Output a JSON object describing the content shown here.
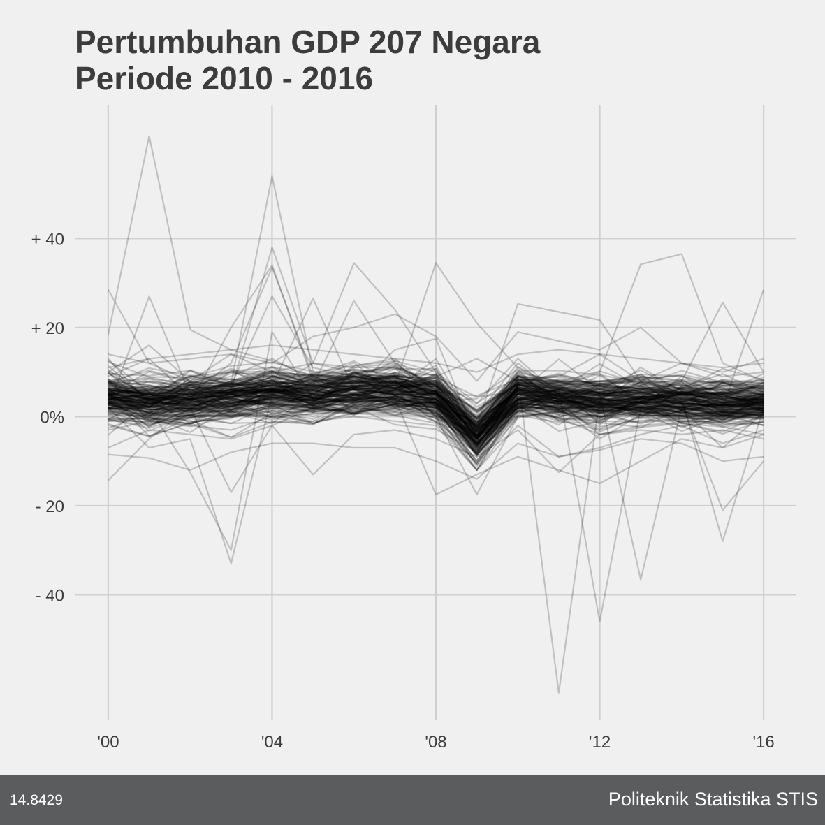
{
  "chart_data": {
    "type": "line",
    "title": [
      "Pertumbuhan GDP 207 Negara",
      "Periode 2010 - 2016"
    ],
    "x_tick_labels": [
      "'00",
      "'04",
      "'08",
      "'12",
      "'16"
    ],
    "x_ticks": [
      2000,
      2004,
      2008,
      2012,
      2016
    ],
    "y_tick_labels": [
      "+ 40",
      "+ 20",
      "0%",
      "- 20",
      "- 40"
    ],
    "y_ticks": [
      40,
      20,
      0,
      -20,
      -40
    ],
    "xlim": [
      1999.2,
      2016.8
    ],
    "ylim": [
      -68,
      70
    ],
    "grid": true,
    "line_color": "#000000",
    "line_opacity": 0.2,
    "series_count": 207,
    "typical_path": [
      [
        2000,
        4.2
      ],
      [
        2001,
        3.2
      ],
      [
        2002,
        3.6
      ],
      [
        2003,
        4.3
      ],
      [
        2004,
        5.3
      ],
      [
        2005,
        4.8
      ],
      [
        2006,
        5.4
      ],
      [
        2007,
        5.9
      ],
      [
        2008,
        4.3
      ],
      [
        2009,
        -4.6
      ],
      [
        2010,
        5.0
      ],
      [
        2011,
        4.1
      ],
      [
        2012,
        3.3
      ],
      [
        2013,
        3.6
      ],
      [
        2014,
        3.4
      ],
      [
        2015,
        2.9
      ],
      [
        2016,
        3.0
      ]
    ],
    "series": [
      {
        "x": [
          2000,
          2001,
          2002,
          2003,
          2004,
          2005,
          2006,
          2007,
          2008,
          2009,
          2010,
          2011,
          2012,
          2013,
          2014,
          2015,
          2016
        ],
        "values": [
          18.4,
          63.0,
          19.5,
          15.0,
          12.5,
          9.0,
          10.5,
          9.5,
          8.0,
          -3.0,
          6.0,
          5.5,
          4.0,
          4.5,
          4.0,
          3.5,
          3.5
        ]
      },
      {
        "x": [
          2000,
          2001,
          2002,
          2003,
          2004,
          2005,
          2006,
          2007,
          2008,
          2009,
          2010,
          2011,
          2012,
          2013,
          2014,
          2015,
          2016
        ],
        "values": [
          7.0,
          6.5,
          6.0,
          7.5,
          54.0,
          10.0,
          8.0,
          7.0,
          5.0,
          -6.0,
          4.0,
          3.5,
          3.0,
          3.5,
          3.0,
          2.5,
          2.5
        ]
      },
      {
        "x": [
          2000,
          2001,
          2002,
          2003,
          2004,
          2005,
          2006,
          2007,
          2008,
          2009,
          2010,
          2011,
          2012,
          2013,
          2014,
          2015,
          2016
        ],
        "values": [
          5.0,
          5.5,
          4.0,
          6.0,
          38.0,
          12.0,
          10.0,
          11.0,
          6.0,
          -4.0,
          7.0,
          6.5,
          7.0,
          5.0,
          4.5,
          2.0,
          3.0
        ]
      },
      {
        "x": [
          2000,
          2001,
          2002,
          2003,
          2004,
          2005,
          2006,
          2007,
          2008,
          2009,
          2010,
          2011,
          2012,
          2013,
          2014,
          2015,
          2016
        ],
        "values": [
          2.0,
          27.0,
          5.0,
          12.0,
          33.5,
          9.0,
          8.0,
          7.5,
          6.0,
          -5.0,
          5.0,
          3.0,
          1.0,
          3.0,
          2.0,
          1.5,
          2.0
        ]
      },
      {
        "x": [
          2000,
          2001,
          2002,
          2003,
          2004,
          2005,
          2006,
          2007,
          2008,
          2009,
          2010,
          2011,
          2012,
          2013,
          2014,
          2015,
          2016
        ],
        "values": [
          4.0,
          5.0,
          3.0,
          20.0,
          34.0,
          8.0,
          6.5,
          5.0,
          3.0,
          -8.0,
          4.0,
          3.0,
          2.5,
          3.0,
          3.5,
          2.0,
          2.0
        ]
      },
      {
        "x": [
          2000,
          2001,
          2002,
          2003,
          2004,
          2005,
          2006,
          2007,
          2008,
          2009,
          2010,
          2011,
          2012,
          2013,
          2014,
          2015,
          2016
        ],
        "values": [
          8.0,
          7.0,
          6.0,
          7.0,
          27.0,
          11.0,
          9.0,
          8.0,
          5.0,
          -3.0,
          6.0,
          5.0,
          4.0,
          4.0,
          4.5,
          3.0,
          3.5
        ]
      },
      {
        "x": [
          2000,
          2001,
          2002,
          2003,
          2004,
          2005,
          2006,
          2007,
          2008,
          2009,
          2010,
          2011,
          2012,
          2013,
          2014,
          2015,
          2016
        ],
        "values": [
          3.0,
          4.0,
          2.0,
          5.0,
          6.0,
          12.0,
          34.5,
          24.0,
          10.0,
          3.0,
          9.0,
          7.0,
          6.0,
          6.0,
          5.0,
          4.0,
          4.0
        ]
      },
      {
        "x": [
          2000,
          2001,
          2002,
          2003,
          2004,
          2005,
          2006,
          2007,
          2008,
          2009,
          2010,
          2011,
          2012,
          2013,
          2014,
          2015,
          2016
        ],
        "values": [
          6.0,
          5.0,
          4.0,
          5.0,
          7.0,
          26.5,
          6.0,
          15.0,
          17.5,
          -5.0,
          8.0,
          6.0,
          5.0,
          6.0,
          5.0,
          4.0,
          5.0
        ]
      },
      {
        "x": [
          2000,
          2001,
          2002,
          2003,
          2004,
          2005,
          2006,
          2007,
          2008,
          2009,
          2010,
          2011,
          2012,
          2013,
          2014,
          2015,
          2016
        ],
        "values": [
          5.0,
          4.0,
          5.0,
          6.0,
          5.0,
          7.0,
          26.0,
          12.0,
          6.0,
          -2.0,
          5.0,
          4.0,
          3.5,
          4.0,
          3.0,
          2.5,
          3.0
        ]
      },
      {
        "x": [
          2000,
          2001,
          2002,
          2003,
          2004,
          2005,
          2006,
          2007,
          2008,
          2009,
          2010,
          2011,
          2012,
          2013,
          2014,
          2015,
          2016
        ],
        "values": [
          4.0,
          3.0,
          4.0,
          5.0,
          6.0,
          6.0,
          7.0,
          7.0,
          34.5,
          21.0,
          11.0,
          5.0,
          5.0,
          4.0,
          4.0,
          3.0,
          3.0
        ]
      },
      {
        "x": [
          2000,
          2001,
          2002,
          2003,
          2004,
          2005,
          2006,
          2007,
          2008,
          2009,
          2010,
          2011,
          2012,
          2013,
          2014,
          2015,
          2016
        ],
        "values": [
          5.0,
          6.0,
          5.0,
          6.0,
          7.0,
          6.0,
          7.0,
          6.0,
          5.0,
          -2.0,
          25.3,
          23.5,
          21.7,
          8.0,
          6.0,
          5.0,
          5.0
        ]
      },
      {
        "x": [
          2000,
          2001,
          2002,
          2003,
          2004,
          2005,
          2006,
          2007,
          2008,
          2009,
          2010,
          2011,
          2012,
          2013,
          2014,
          2015,
          2016
        ],
        "values": [
          4.0,
          5.0,
          6.0,
          5.0,
          6.0,
          7.0,
          6.0,
          7.0,
          5.0,
          -1.0,
          6.0,
          7.0,
          10.0,
          34.2,
          36.5,
          12.0,
          8.0
        ]
      },
      {
        "x": [
          2000,
          2001,
          2002,
          2003,
          2004,
          2005,
          2006,
          2007,
          2008,
          2009,
          2010,
          2011,
          2012,
          2013,
          2014,
          2015,
          2016
        ],
        "values": [
          6.0,
          5.0,
          6.0,
          5.0,
          6.0,
          5.0,
          6.0,
          5.0,
          4.0,
          -3.0,
          5.0,
          6.0,
          5.0,
          6.0,
          8.0,
          25.6,
          10.0
        ]
      },
      {
        "x": [
          2000,
          2001,
          2002,
          2003,
          2004,
          2005,
          2006,
          2007,
          2008,
          2009,
          2010,
          2011,
          2012,
          2013,
          2014,
          2015,
          2016
        ],
        "values": [
          28.5,
          12.0,
          8.0,
          10.0,
          9.0,
          7.0,
          6.0,
          7.0,
          5.0,
          -1.0,
          5.0,
          4.0,
          3.0,
          4.0,
          3.0,
          2.0,
          28.5
        ]
      },
      {
        "x": [
          2000,
          2001,
          2002,
          2003,
          2004,
          2005,
          2006,
          2007,
          2008,
          2009,
          2010,
          2011,
          2012,
          2013,
          2014,
          2015,
          2016
        ],
        "values": [
          -14.3,
          -5.0,
          2.0,
          -17.0,
          -2.0,
          2.0,
          4.0,
          3.0,
          2.0,
          -4.0,
          3.0,
          2.0,
          1.0,
          2.0,
          2.0,
          1.0,
          1.0
        ]
      },
      {
        "x": [
          2000,
          2001,
          2002,
          2003,
          2004,
          2005,
          2006,
          2007,
          2008,
          2009,
          2010,
          2011,
          2012,
          2013,
          2014,
          2015,
          2016
        ],
        "values": [
          -8.5,
          -9.3,
          -12.0,
          -8.0,
          -6.0,
          -6.0,
          -7.0,
          -7.0,
          -10.0,
          -14.0,
          -6.0,
          -9.0,
          -7.5,
          -5.0,
          -6.0,
          -10.0,
          -9.0
        ]
      },
      {
        "x": [
          2000,
          2001,
          2002,
          2003,
          2004,
          2005,
          2006,
          2007,
          2008,
          2009,
          2010,
          2011,
          2012,
          2013,
          2014,
          2015,
          2016
        ],
        "values": [
          2.0,
          -7.0,
          -5.0,
          -33.0,
          5.0,
          3.0,
          4.0,
          3.0,
          2.0,
          -5.0,
          3.0,
          2.0,
          2.0,
          2.0,
          1.0,
          1.0,
          1.0
        ]
      },
      {
        "x": [
          2000,
          2001,
          2002,
          2003,
          2004,
          2005,
          2006,
          2007,
          2008,
          2009,
          2010,
          2011,
          2012,
          2013,
          2014,
          2015,
          2016
        ],
        "values": [
          3.0,
          2.0,
          -12.5,
          -30.0,
          19.0,
          4.0,
          5.0,
          4.0,
          3.0,
          -6.0,
          4.0,
          3.0,
          3.0,
          2.0,
          2.0,
          1.0,
          2.0
        ]
      },
      {
        "x": [
          2000,
          2001,
          2002,
          2003,
          2004,
          2005,
          2006,
          2007,
          2008,
          2009,
          2010,
          2011,
          2012,
          2013,
          2014,
          2015,
          2016
        ],
        "values": [
          6.0,
          4.0,
          5.0,
          6.0,
          7.0,
          6.0,
          6.0,
          5.0,
          4.0,
          -2.0,
          9.0,
          -62.0,
          4.0,
          3.0,
          3.0,
          2.0,
          3.0
        ]
      },
      {
        "x": [
          2000,
          2001,
          2002,
          2003,
          2004,
          2005,
          2006,
          2007,
          2008,
          2009,
          2010,
          2011,
          2012,
          2013,
          2014,
          2015,
          2016
        ],
        "values": [
          5.0,
          4.0,
          5.0,
          4.0,
          5.0,
          4.0,
          5.0,
          4.0,
          3.0,
          -3.0,
          4.0,
          6.0,
          -46.0,
          2.0,
          3.0,
          2.0,
          3.0
        ]
      },
      {
        "x": [
          2000,
          2001,
          2002,
          2003,
          2004,
          2005,
          2006,
          2007,
          2008,
          2009,
          2010,
          2011,
          2012,
          2013,
          2014,
          2015,
          2016
        ],
        "values": [
          4.0,
          5.0,
          4.0,
          5.0,
          4.0,
          5.0,
          4.0,
          5.0,
          4.0,
          -2.0,
          5.0,
          4.0,
          5.0,
          -36.6,
          2.0,
          3.0,
          3.0
        ]
      },
      {
        "x": [
          2000,
          2001,
          2002,
          2003,
          2004,
          2005,
          2006,
          2007,
          2008,
          2009,
          2010,
          2011,
          2012,
          2013,
          2014,
          2015,
          2016
        ],
        "values": [
          5.0,
          4.0,
          5.0,
          4.0,
          5.0,
          4.0,
          5.0,
          4.0,
          3.0,
          -2.0,
          4.0,
          3.0,
          4.0,
          3.0,
          4.0,
          -28.0,
          2.0
        ]
      },
      {
        "x": [
          2000,
          2001,
          2002,
          2003,
          2004,
          2005,
          2006,
          2007,
          2008,
          2009,
          2010,
          2011,
          2012,
          2013,
          2014,
          2015,
          2016
        ],
        "values": [
          4.0,
          3.0,
          4.0,
          3.0,
          4.0,
          3.0,
          4.0,
          3.0,
          2.0,
          -3.0,
          3.0,
          2.0,
          3.0,
          2.0,
          3.0,
          -21.0,
          -10.0
        ]
      },
      {
        "x": [
          2000,
          2001,
          2002,
          2003,
          2004,
          2005,
          2006,
          2007,
          2008,
          2009,
          2010,
          2011,
          2012,
          2013,
          2014,
          2015,
          2016
        ],
        "values": [
          3.0,
          4.0,
          3.0,
          4.0,
          3.0,
          4.0,
          3.0,
          4.0,
          -17.5,
          -13.0,
          -9.0,
          -12.0,
          -15.0,
          -10.0,
          -5.0,
          -7.0,
          -4.0
        ]
      },
      {
        "x": [
          2000,
          2001,
          2002,
          2003,
          2004,
          2005,
          2006,
          2007,
          2008,
          2009,
          2010,
          2011,
          2012,
          2013,
          2014,
          2015,
          2016
        ],
        "values": [
          2.0,
          1.0,
          2.0,
          0.0,
          2.0,
          1.0,
          2.0,
          1.0,
          0.0,
          -17.5,
          0.0,
          1.0,
          0.0,
          1.0,
          0.0,
          1.0,
          0.0
        ]
      },
      {
        "x": [
          2000,
          2001,
          2002,
          2003,
          2004,
          2005,
          2006,
          2007,
          2008,
          2009,
          2010,
          2011,
          2012,
          2013,
          2014,
          2015,
          2016
        ],
        "values": [
          -7.0,
          -3.0,
          -4.0,
          -5.0,
          -2.0,
          -13.0,
          -4.0,
          -3.0,
          -5.0,
          -9.0,
          -3.0,
          -12.5,
          -4.0,
          -3.0,
          -4.0,
          -3.0,
          -5.0
        ]
      },
      {
        "x": [
          2000,
          2001,
          2002,
          2003,
          2004,
          2005,
          2006,
          2007,
          2008,
          2009,
          2010,
          2011,
          2012,
          2013,
          2014,
          2015,
          2016
        ],
        "values": [
          11.0,
          13.0,
          14.0,
          15.0,
          16.0,
          15.0,
          14.0,
          13.0,
          12.0,
          10.0,
          14.0,
          15.0,
          14.0,
          13.0,
          12.0,
          11.0,
          12.0
        ]
      },
      {
        "x": [
          2000,
          2001,
          2002,
          2003,
          2004,
          2005,
          2006,
          2007,
          2008,
          2009,
          2010,
          2011,
          2012,
          2013,
          2014,
          2015,
          2016
        ],
        "values": [
          14.0,
          12.0,
          13.0,
          14.0,
          12.0,
          18.0,
          20.0,
          23.0,
          18.0,
          8.0,
          19.0,
          17.0,
          15.0,
          20.0,
          12.0,
          10.0,
          13.0
        ]
      },
      {
        "x": [
          2000,
          2001,
          2002,
          2003,
          2004,
          2005,
          2006,
          2007,
          2008,
          2009,
          2010,
          2011,
          2012,
          2013,
          2014,
          2015,
          2016
        ],
        "values": [
          10.0,
          16.0,
          8.0,
          14.0,
          10.0,
          12.0,
          11.0,
          12.0,
          9.0,
          13.0,
          8.0,
          9.0,
          14.0,
          8.0,
          12.0,
          9.0,
          10.0
        ]
      },
      {
        "x": [
          2000,
          2001,
          2002,
          2003,
          2004,
          2005,
          2006,
          2007,
          2008,
          2009,
          2010,
          2011,
          2012,
          2013,
          2014,
          2015,
          2016
        ],
        "values": [
          -3.0,
          -1.0,
          -2.0,
          -3.0,
          0.0,
          -1.0,
          0.0,
          -1.0,
          -2.0,
          -12.0,
          -2.0,
          -9.0,
          -7.0,
          -4.0,
          -2.0,
          -6.0,
          -3.0
        ]
      }
    ]
  },
  "footer": {
    "left_text": "14.8429",
    "right_text": "Politeknik Statistika STIS"
  }
}
